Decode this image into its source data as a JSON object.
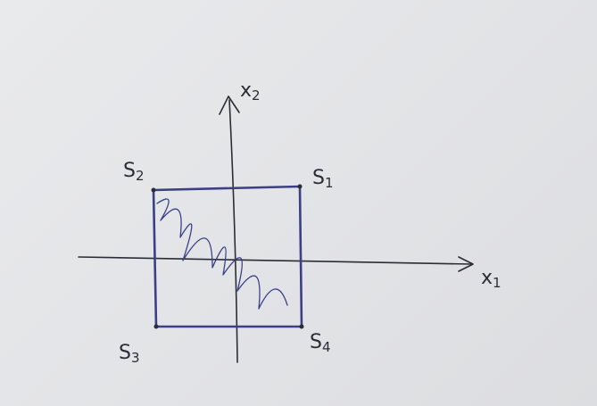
{
  "diagram": {
    "axes": {
      "x": {
        "label": "x",
        "subscript": "1"
      },
      "y": {
        "label": "x",
        "subscript": "2"
      }
    },
    "vertices": [
      {
        "label": "S",
        "subscript": "1"
      },
      {
        "label": "S",
        "subscript": "2"
      },
      {
        "label": "S",
        "subscript": "3"
      },
      {
        "label": "S",
        "subscript": "4"
      }
    ],
    "ink_colors": {
      "axes": "#2a2d35",
      "square": "#3a3f86"
    }
  }
}
